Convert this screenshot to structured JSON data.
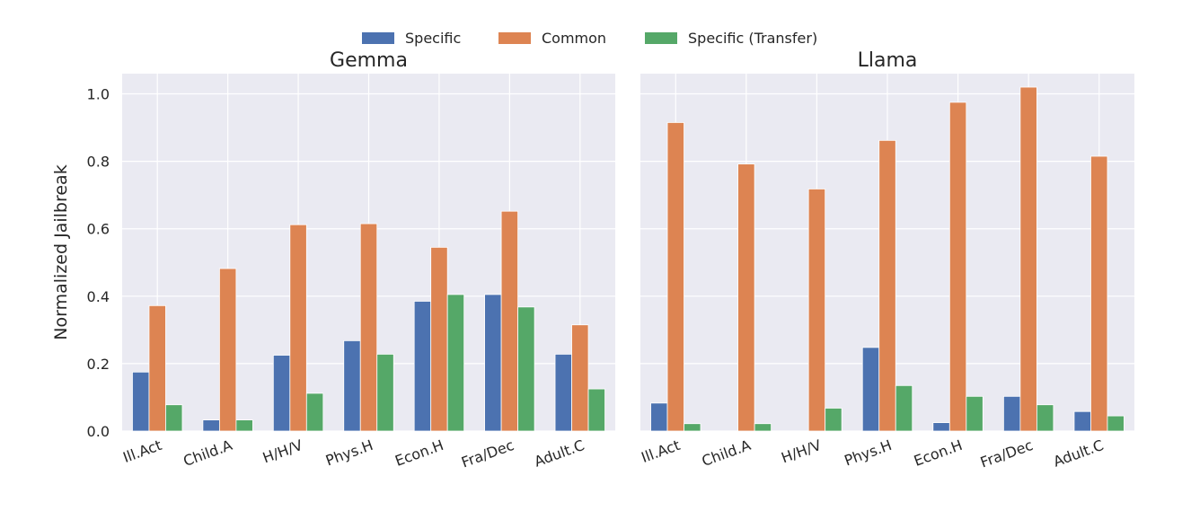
{
  "chart_data": {
    "type": "bar",
    "legend": {
      "placement": "top-center",
      "entries": [
        {
          "name": "Specific",
          "color": "#4C72B0"
        },
        {
          "name": "Common",
          "color": "#DD8452"
        },
        {
          "name": "Specific (Transfer)",
          "color": "#55A868"
        }
      ]
    },
    "ylabel": "Normalized Jailbreak",
    "ylim": [
      0,
      1.06
    ],
    "yticks": [
      "0.0",
      "0.2",
      "0.4",
      "0.6",
      "0.8",
      "1.0"
    ],
    "grid": true,
    "panel_background": "#EAEAF2",
    "categories": [
      "Ill.Act",
      "Child.A",
      "H/H/V",
      "Phys.H",
      "Econ.H",
      "Fra/Dec",
      "Adult.C"
    ],
    "panels": [
      {
        "title": "Gemma",
        "series": [
          {
            "name": "Specific",
            "values": [
              0.175,
              0.033,
              0.225,
              0.268,
              0.385,
              0.405,
              0.228
            ]
          },
          {
            "name": "Common",
            "values": [
              0.372,
              0.482,
              0.612,
              0.615,
              0.545,
              0.652,
              0.315
            ]
          },
          {
            "name": "Specific (Transfer)",
            "values": [
              0.078,
              0.033,
              0.112,
              0.228,
              0.405,
              0.368,
              0.125
            ]
          }
        ]
      },
      {
        "title": "Llama",
        "series": [
          {
            "name": "Specific",
            "values": [
              0.083,
              0.0,
              0.0,
              0.248,
              0.025,
              0.103,
              0.058
            ]
          },
          {
            "name": "Common",
            "values": [
              0.915,
              0.792,
              0.718,
              0.862,
              0.975,
              1.02,
              0.815
            ]
          },
          {
            "name": "Specific (Transfer)",
            "values": [
              0.022,
              0.022,
              0.068,
              0.135,
              0.103,
              0.078,
              0.045
            ]
          }
        ]
      }
    ]
  }
}
